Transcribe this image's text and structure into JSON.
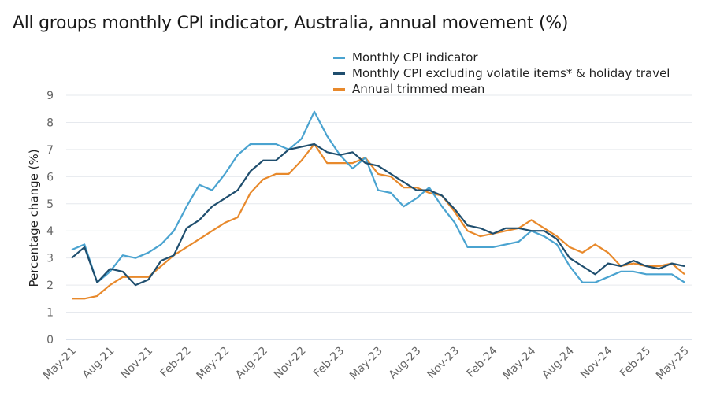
{
  "chart_data": {
    "type": "line",
    "title": "All groups monthly CPI indicator, Australia, annual movement (%)",
    "xlabel": "",
    "ylabel": "Percentage change (%)",
    "ylim": [
      0,
      9
    ],
    "yticks": [
      0,
      1,
      2,
      3,
      4,
      5,
      6,
      7,
      8,
      9
    ],
    "grid": true,
    "legend_position": "top-right",
    "x": [
      "May-21",
      "Jun-21",
      "Jul-21",
      "Aug-21",
      "Sep-21",
      "Oct-21",
      "Nov-21",
      "Dec-21",
      "Jan-22",
      "Feb-22",
      "Mar-22",
      "Apr-22",
      "May-22",
      "Jun-22",
      "Jul-22",
      "Aug-22",
      "Sep-22",
      "Oct-22",
      "Nov-22",
      "Dec-22",
      "Jan-23",
      "Feb-23",
      "Mar-23",
      "Apr-23",
      "May-23",
      "Jun-23",
      "Jul-23",
      "Aug-23",
      "Sep-23",
      "Oct-23",
      "Nov-23",
      "Dec-23",
      "Jan-24",
      "Feb-24",
      "Mar-24",
      "Apr-24",
      "May-24",
      "Jun-24",
      "Jul-24",
      "Aug-24",
      "Sep-24",
      "Oct-24",
      "Nov-24",
      "Dec-24",
      "Jan-25",
      "Feb-25",
      "Mar-25",
      "Apr-25",
      "May-25"
    ],
    "xtick_labels": [
      "May-21",
      "Aug-21",
      "Nov-21",
      "Feb-22",
      "May-22",
      "Aug-22",
      "Nov-22",
      "Feb-23",
      "May-23",
      "Aug-23",
      "Nov-23",
      "Feb-24",
      "May-24",
      "Aug-24",
      "Nov-24",
      "Feb-25",
      "May-25"
    ],
    "series": [
      {
        "name": "Monthly CPI indicator",
        "color": "#4aa3d0",
        "values": [
          3.3,
          3.5,
          2.1,
          2.5,
          3.1,
          3.0,
          3.2,
          3.5,
          4.0,
          4.9,
          5.7,
          5.5,
          6.1,
          6.8,
          7.2,
          7.2,
          7.2,
          7.0,
          7.4,
          8.4,
          7.5,
          6.8,
          6.3,
          6.7,
          5.5,
          5.4,
          4.9,
          5.2,
          5.6,
          4.9,
          4.3,
          3.4,
          3.4,
          3.4,
          3.5,
          3.6,
          4.0,
          3.8,
          3.5,
          2.7,
          2.1,
          2.1,
          2.3,
          2.5,
          2.5,
          2.4,
          2.4,
          2.4,
          2.1
        ]
      },
      {
        "name": "Monthly CPI excluding volatile items* & holiday travel",
        "color": "#1f4e6e",
        "values": [
          3.0,
          3.4,
          2.1,
          2.6,
          2.5,
          2.0,
          2.2,
          2.9,
          3.1,
          4.1,
          4.4,
          4.9,
          5.2,
          5.5,
          6.2,
          6.6,
          6.6,
          7.0,
          7.1,
          7.2,
          6.9,
          6.8,
          6.9,
          6.5,
          6.4,
          6.1,
          5.8,
          5.5,
          5.5,
          5.3,
          4.8,
          4.2,
          4.1,
          3.9,
          4.1,
          4.1,
          4.0,
          4.0,
          3.7,
          3.0,
          2.7,
          2.4,
          2.8,
          2.7,
          2.9,
          2.7,
          2.6,
          2.8,
          2.7
        ]
      },
      {
        "name": "Annual trimmed mean",
        "color": "#e8892b",
        "values": [
          1.5,
          1.5,
          1.6,
          2.0,
          2.3,
          2.3,
          2.3,
          2.7,
          3.1,
          3.4,
          3.7,
          4.0,
          4.3,
          4.5,
          5.4,
          5.9,
          6.1,
          6.1,
          6.6,
          7.2,
          6.5,
          6.5,
          6.5,
          6.7,
          6.1,
          6.0,
          5.6,
          5.6,
          5.4,
          5.3,
          4.7,
          4.0,
          3.8,
          3.9,
          4.0,
          4.1,
          4.4,
          4.1,
          3.8,
          3.4,
          3.2,
          3.5,
          3.2,
          2.7,
          2.8,
          2.7,
          2.7,
          2.8,
          2.4
        ]
      }
    ]
  }
}
